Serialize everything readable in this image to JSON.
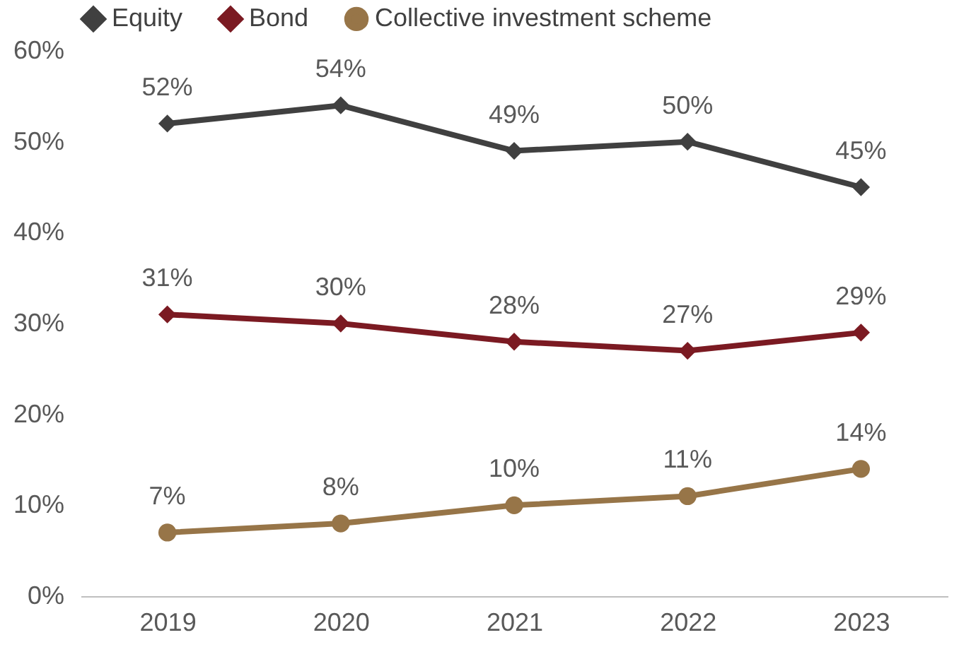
{
  "chart_data": {
    "type": "line",
    "categories": [
      "2019",
      "2020",
      "2021",
      "2022",
      "2023"
    ],
    "series": [
      {
        "name": "Equity",
        "color": "#404040",
        "marker": "diamond",
        "values": [
          52,
          54,
          49,
          50,
          45
        ],
        "value_labels": [
          "52%",
          "54%",
          "49%",
          "50%",
          "45%"
        ]
      },
      {
        "name": "Bond",
        "color": "#7b1a22",
        "marker": "diamond",
        "values": [
          31,
          30,
          28,
          27,
          29
        ],
        "value_labels": [
          "31%",
          "30%",
          "28%",
          "27%",
          "29%"
        ]
      },
      {
        "name": "Collective investment scheme",
        "color": "#977548",
        "marker": "circle",
        "values": [
          7,
          8,
          10,
          11,
          14
        ],
        "value_labels": [
          "7%",
          "8%",
          "10%",
          "11%",
          "14%"
        ]
      }
    ],
    "ylim": [
      0,
      60
    ],
    "yticks": [
      {
        "value": 0,
        "label": "0%"
      },
      {
        "value": 10,
        "label": "10%"
      },
      {
        "value": 20,
        "label": "20%"
      },
      {
        "value": 30,
        "label": "30%"
      },
      {
        "value": 40,
        "label": "40%"
      },
      {
        "value": 50,
        "label": "50%"
      },
      {
        "value": 60,
        "label": "60%"
      }
    ],
    "grid": false,
    "legend": "top left"
  }
}
